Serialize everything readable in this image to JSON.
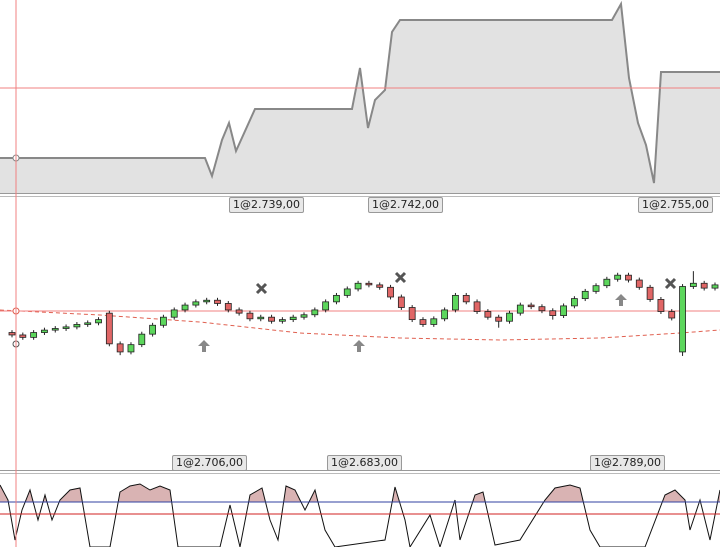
{
  "chart_data": {
    "type": "candlestick",
    "ylim": [
      2680,
      2810
    ],
    "up_color": "#5cd65c",
    "down_color": "#e06666",
    "candles": [
      [
        2714,
        2717,
        2708,
        2711
      ],
      [
        2711,
        2714,
        2705,
        2708
      ],
      [
        2708,
        2717,
        2705,
        2714
      ],
      [
        2714,
        2720,
        2711,
        2717
      ],
      [
        2717,
        2722,
        2714,
        2719
      ],
      [
        2719,
        2724,
        2716,
        2721
      ],
      [
        2721,
        2727,
        2718,
        2724
      ],
      [
        2724,
        2729,
        2721,
        2726
      ],
      [
        2726,
        2733,
        2723,
        2730
      ],
      [
        2738,
        2741,
        2697,
        2700
      ],
      [
        2700,
        2703,
        2686,
        2690
      ],
      [
        2690,
        2702,
        2687,
        2699
      ],
      [
        2699,
        2715,
        2696,
        2712
      ],
      [
        2712,
        2726,
        2709,
        2723
      ],
      [
        2723,
        2736,
        2720,
        2733
      ],
      [
        2733,
        2745,
        2730,
        2742
      ],
      [
        2742,
        2751,
        2739,
        2748
      ],
      [
        2748,
        2755,
        2745,
        2752
      ],
      [
        2752,
        2757,
        2749,
        2754
      ],
      [
        2754,
        2757,
        2747,
        2750
      ],
      [
        2750,
        2753,
        2739,
        2742
      ],
      [
        2742,
        2745,
        2735,
        2738
      ],
      [
        2738,
        2741,
        2728,
        2731
      ],
      [
        2731,
        2736,
        2728,
        2733
      ],
      [
        2733,
        2736,
        2725,
        2728
      ],
      [
        2728,
        2733,
        2725,
        2730
      ],
      [
        2730,
        2736,
        2727,
        2733
      ],
      [
        2733,
        2739,
        2730,
        2736
      ],
      [
        2736,
        2745,
        2733,
        2742
      ],
      [
        2742,
        2755,
        2739,
        2752
      ],
      [
        2752,
        2763,
        2749,
        2760
      ],
      [
        2760,
        2771,
        2757,
        2768
      ],
      [
        2768,
        2778,
        2765,
        2775
      ],
      [
        2775,
        2778,
        2770,
        2773
      ],
      [
        2773,
        2776,
        2767,
        2770
      ],
      [
        2770,
        2773,
        2755,
        2758
      ],
      [
        2758,
        2761,
        2742,
        2745
      ],
      [
        2745,
        2748,
        2727,
        2730
      ],
      [
        2730,
        2733,
        2721,
        2724
      ],
      [
        2724,
        2734,
        2721,
        2731
      ],
      [
        2731,
        2745,
        2728,
        2742
      ],
      [
        2742,
        2763,
        2739,
        2760
      ],
      [
        2760,
        2763,
        2749,
        2752
      ],
      [
        2752,
        2755,
        2737,
        2740
      ],
      [
        2740,
        2743,
        2730,
        2733
      ],
      [
        2733,
        2736,
        2720,
        2728
      ],
      [
        2728,
        2741,
        2725,
        2738
      ],
      [
        2738,
        2751,
        2735,
        2748
      ],
      [
        2748,
        2751,
        2743,
        2746
      ],
      [
        2746,
        2749,
        2738,
        2741
      ],
      [
        2741,
        2744,
        2730,
        2735
      ],
      [
        2735,
        2750,
        2732,
        2747
      ],
      [
        2747,
        2759,
        2744,
        2756
      ],
      [
        2756,
        2768,
        2753,
        2765
      ],
      [
        2765,
        2775,
        2762,
        2772
      ],
      [
        2772,
        2783,
        2769,
        2780
      ],
      [
        2780,
        2788,
        2777,
        2785
      ],
      [
        2785,
        2788,
        2776,
        2779
      ],
      [
        2779,
        2782,
        2767,
        2770
      ],
      [
        2770,
        2773,
        2752,
        2755
      ],
      [
        2755,
        2758,
        2737,
        2740
      ],
      [
        2740,
        2743,
        2729,
        2732
      ],
      [
        2690,
        2774,
        2685,
        2771
      ],
      [
        2771,
        2790,
        2768,
        2775
      ],
      [
        2775,
        2778,
        2766,
        2769
      ],
      [
        2769,
        2776,
        2766,
        2773
      ]
    ]
  },
  "labels": {
    "equity": [
      "1@2.739,00",
      "1@2.742,00",
      "1@2.755,00"
    ],
    "price": [
      "1@2.706,00",
      "1@2.683,00",
      "1@2.789,00"
    ]
  }
}
